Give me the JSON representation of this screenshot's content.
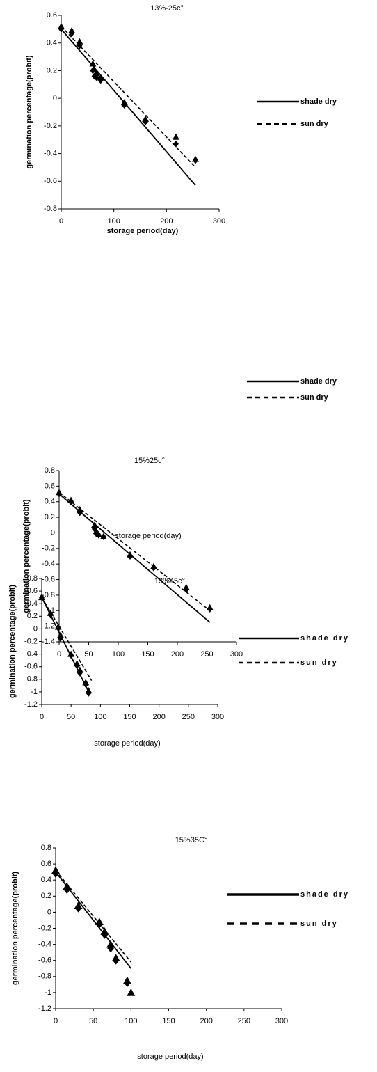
{
  "chart_data": [
    {
      "type": "scatter",
      "title": "13%-25c°",
      "x_label": "storage period(day)",
      "y_label": "germination percentage(probit)",
      "xlim": [
        0,
        300
      ],
      "xticks": [
        0,
        100,
        200,
        300
      ],
      "ylim": [
        -0.8,
        0.6
      ],
      "yticks": [
        -0.8,
        -0.6,
        -0.4,
        -0.2,
        0,
        0.2,
        0.4,
        0.6
      ],
      "legend": "right",
      "x": [
        0,
        20,
        35,
        60,
        63,
        67,
        75,
        120,
        160,
        218,
        255
      ],
      "series": [
        {
          "name": "shade dry",
          "color": "#000000",
          "marker": "diamond",
          "line_style": "solid",
          "values": [
            0.5,
            0.47,
            0.38,
            0.2,
            0.16,
            0.15,
            0.13,
            -0.05,
            -0.17,
            -0.33,
            -0.45
          ],
          "trend_x": [
            0,
            255
          ],
          "trend": [
            0.5,
            -0.63
          ]
        },
        {
          "name": "sun dry",
          "color": "#000000",
          "marker": "triangle",
          "line_style": "dashed",
          "values": [
            0.52,
            0.49,
            0.41,
            0.25,
            0.21,
            0.18,
            0.15,
            -0.03,
            -0.15,
            -0.28,
            -0.44
          ],
          "trend_x": [
            0,
            255
          ],
          "trend": [
            0.52,
            -0.5
          ]
        }
      ]
    },
    {
      "type": "scatter",
      "title": "15%25c°",
      "x_label": "storage period(day)",
      "y_label": "germination percentage(probit)",
      "xlim": [
        0,
        300
      ],
      "xticks": [
        0,
        50,
        100,
        150,
        200,
        250,
        300
      ],
      "ylim": [
        -1.4,
        0.8
      ],
      "yticks": [
        -1.4,
        -1.2,
        -1,
        -0.8,
        -0.6,
        -0.4,
        -0.2,
        0,
        0.2,
        0.4,
        0.6,
        0.8
      ],
      "legend": "right",
      "x": [
        0,
        20,
        35,
        60,
        63,
        67,
        75,
        120,
        160,
        215,
        255
      ],
      "series": [
        {
          "name": "shade dry",
          "color": "#000000",
          "marker": "diamond",
          "line_style": "solid",
          "values": [
            0.5,
            0.4,
            0.26,
            0.05,
            -0.01,
            -0.03,
            -0.05,
            -0.3,
            -0.45,
            -0.73,
            -0.98
          ],
          "trend_x": [
            0,
            255
          ],
          "trend": [
            0.5,
            -1.15
          ]
        },
        {
          "name": "sun dry",
          "color": "#000000",
          "marker": "triangle",
          "line_style": "dashed",
          "values": [
            0.52,
            0.42,
            0.3,
            0.1,
            0.02,
            -0.02,
            -0.05,
            -0.28,
            -0.43,
            -0.7,
            -0.96
          ],
          "trend_x": [
            0,
            255
          ],
          "trend": [
            0.52,
            -1.0
          ]
        }
      ]
    },
    {
      "type": "scatter",
      "title": "13%45c°",
      "x_label": "storage period(day)",
      "y_label": "germination percentage(probit)",
      "xlim": [
        0,
        300
      ],
      "xticks": [
        0,
        50,
        100,
        150,
        200,
        250,
        300
      ],
      "ylim": [
        -1.2,
        0.8
      ],
      "yticks": [
        -1.2,
        -1,
        -0.8,
        -0.6,
        -0.4,
        -0.2,
        0,
        0.2,
        0.4,
        0.6,
        0.8
      ],
      "legend": "right",
      "x": [
        0,
        15,
        28,
        32,
        50,
        60,
        65,
        75,
        80
      ],
      "series": [
        {
          "name": "shade dry",
          "color": "#000000",
          "marker": "diamond",
          "line_style": "solid",
          "values": [
            0.5,
            0.22,
            0.02,
            -0.15,
            -0.42,
            -0.58,
            -0.7,
            -0.88,
            -1.02
          ],
          "trend_x": [
            0,
            80
          ],
          "trend": [
            0.5,
            -1.0
          ]
        },
        {
          "name": "sun dry",
          "color": "#000000",
          "marker": "triangle",
          "line_style": "dashed",
          "values": [
            0.5,
            0.25,
            0.03,
            -0.1,
            -0.4,
            -0.55,
            -0.65,
            -0.85,
            -0.98
          ],
          "trend_x": [
            0,
            85
          ],
          "trend": [
            0.5,
            -0.82
          ]
        }
      ]
    },
    {
      "type": "scatter",
      "title": "15%35C°",
      "x_label": "storage period(day)",
      "y_label": "germination percentage(probit)",
      "xlim": [
        0,
        300
      ],
      "xticks": [
        0,
        50,
        100,
        150,
        200,
        250,
        300
      ],
      "ylim": [
        -1.2,
        0.8
      ],
      "yticks": [
        -1.2,
        -1,
        -0.8,
        -0.6,
        -0.4,
        -0.2,
        0,
        0.2,
        0.4,
        0.6,
        0.8
      ],
      "legend": "right",
      "x": [
        0,
        15,
        30,
        58,
        65,
        73,
        80,
        95,
        100
      ],
      "series": [
        {
          "name": "shade dry",
          "color": "#000000",
          "marker": "diamond",
          "line_style": "solid",
          "values": [
            0.48,
            0.28,
            0.05,
            -0.15,
            -0.28,
            -0.45,
            -0.6,
            -0.88,
            null
          ],
          "trend_x": [
            0,
            100
          ],
          "trend": [
            0.5,
            -0.7
          ]
        },
        {
          "name": "sun dry",
          "color": "#000000",
          "marker": "triangle",
          "line_style": "dashed",
          "values": [
            0.52,
            0.32,
            0.08,
            -0.12,
            -0.24,
            -0.4,
            -0.57,
            -0.85,
            -1.0
          ],
          "trend_x": [
            0,
            100
          ],
          "trend": [
            0.52,
            -0.62
          ]
        }
      ]
    }
  ]
}
